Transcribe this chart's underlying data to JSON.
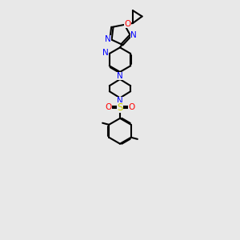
{
  "bg_color": "#e8e8e8",
  "bond_color": "#000000",
  "N_color": "#0000ff",
  "O_color": "#ff0000",
  "S_color": "#cccc00",
  "lw": 1.5,
  "dbo": 0.055,
  "xlim": [
    0,
    10
  ],
  "ylim": [
    0,
    14
  ],
  "figsize": [
    3.0,
    3.0
  ],
  "dpi": 100
}
